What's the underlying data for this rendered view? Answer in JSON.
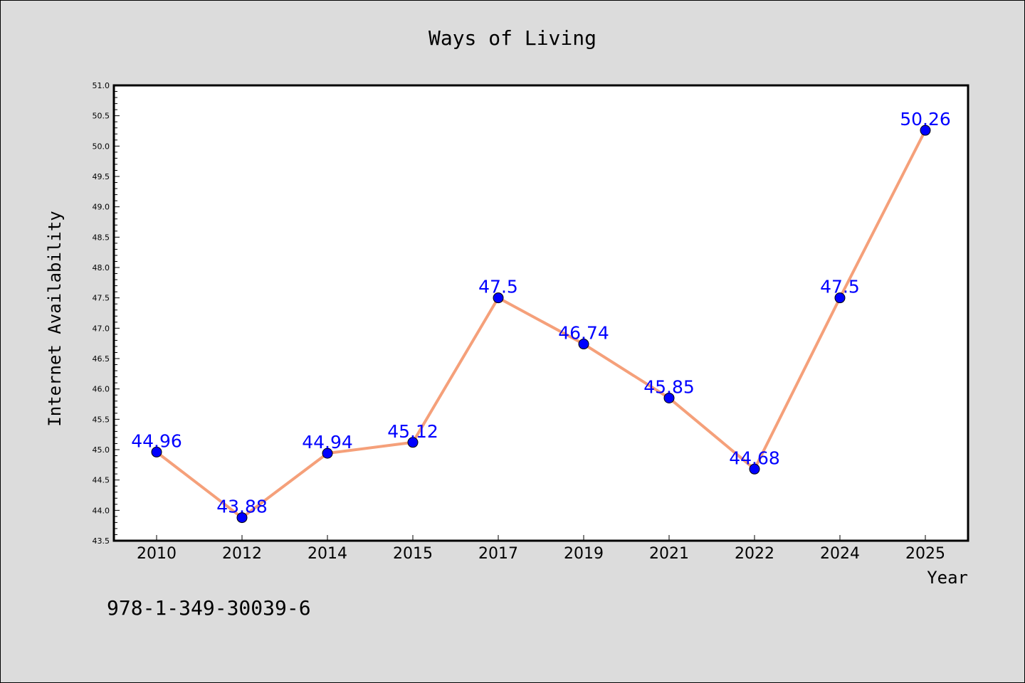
{
  "chart_data": {
    "type": "line",
    "title": "Ways of Living",
    "xlabel": "Year",
    "ylabel": "Internet Availability",
    "categories": [
      "2010",
      "2012",
      "2014",
      "2015",
      "2017",
      "2019",
      "2021",
      "2022",
      "2024",
      "2025"
    ],
    "series": [
      {
        "values": [
          44.96,
          43.88,
          44.94,
          45.12,
          47.5,
          46.74,
          45.85,
          44.68,
          47.5,
          50.26
        ],
        "data_labels": [
          "44.96",
          "43.88",
          "44.94",
          "45.12",
          "47.5",
          "46.74",
          "45.85",
          "44.68",
          "47.5",
          "50.26"
        ]
      }
    ],
    "ylim": [
      43.5,
      51.0
    ],
    "yticks": [
      "43.5",
      "44.0",
      "44.5",
      "45.0",
      "45.5",
      "46.0",
      "46.5",
      "47.0",
      "47.5",
      "48.0",
      "48.5",
      "49.0",
      "49.5",
      "50.0",
      "50.5",
      "51.0"
    ],
    "grid": false,
    "colors": {
      "line": "#f5a07a",
      "marker": "#0000ff",
      "data_label": "#0000ff",
      "background": "#dcdcdc",
      "plot_background": "#ffffff"
    }
  },
  "footnote": "978-1-349-30039-6"
}
